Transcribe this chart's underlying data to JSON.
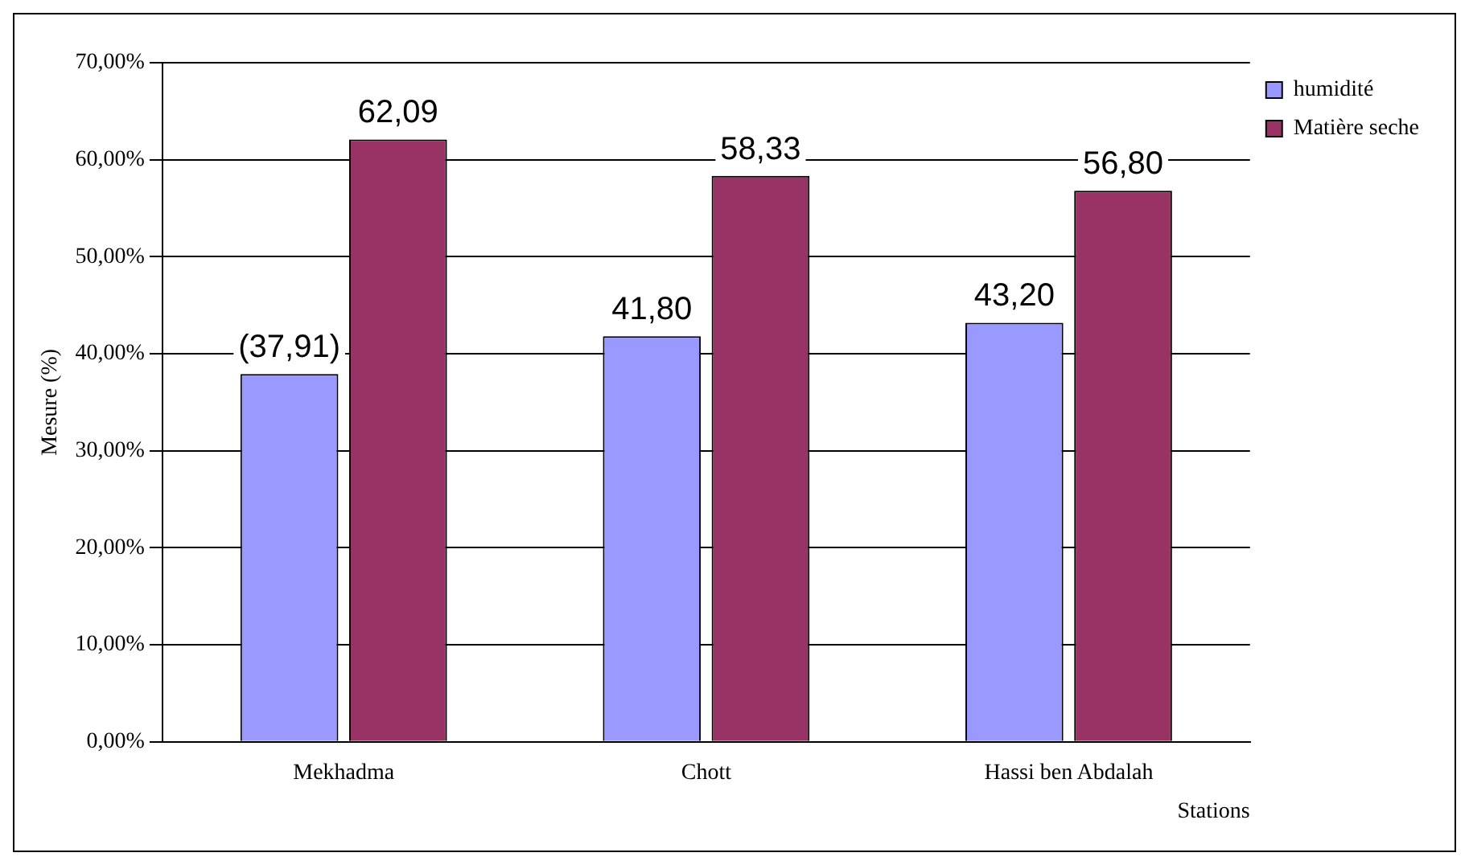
{
  "chart_data": {
    "type": "bar",
    "xlabel": "Stations",
    "ylabel": "Mesure (%)",
    "categories": [
      "Mekhadma",
      "Chott",
      "Hassi ben Abdalah"
    ],
    "series": [
      {
        "name": "humidité",
        "color": "#9999ff",
        "values": [
          37.91,
          41.8,
          43.2
        ],
        "value_labels": [
          "(37,91)",
          "41,80",
          "43,20"
        ]
      },
      {
        "name": "Matière seche",
        "color": "#993366",
        "values": [
          62.09,
          58.33,
          56.8
        ],
        "value_labels": [
          "62,09",
          "58,33",
          "56,80"
        ]
      }
    ],
    "ylim": [
      0,
      70
    ],
    "yticks": [
      {
        "value": 0,
        "label": "0,00%"
      },
      {
        "value": 10,
        "label": "10,00%"
      },
      {
        "value": 20,
        "label": "20,00%"
      },
      {
        "value": 30,
        "label": "30,00%"
      },
      {
        "value": 40,
        "label": "40,00%"
      },
      {
        "value": 50,
        "label": "50,00%"
      },
      {
        "value": 60,
        "label": "60,00%"
      },
      {
        "value": 70,
        "label": "70,00%"
      }
    ],
    "grid": "y",
    "legend": "top right"
  }
}
